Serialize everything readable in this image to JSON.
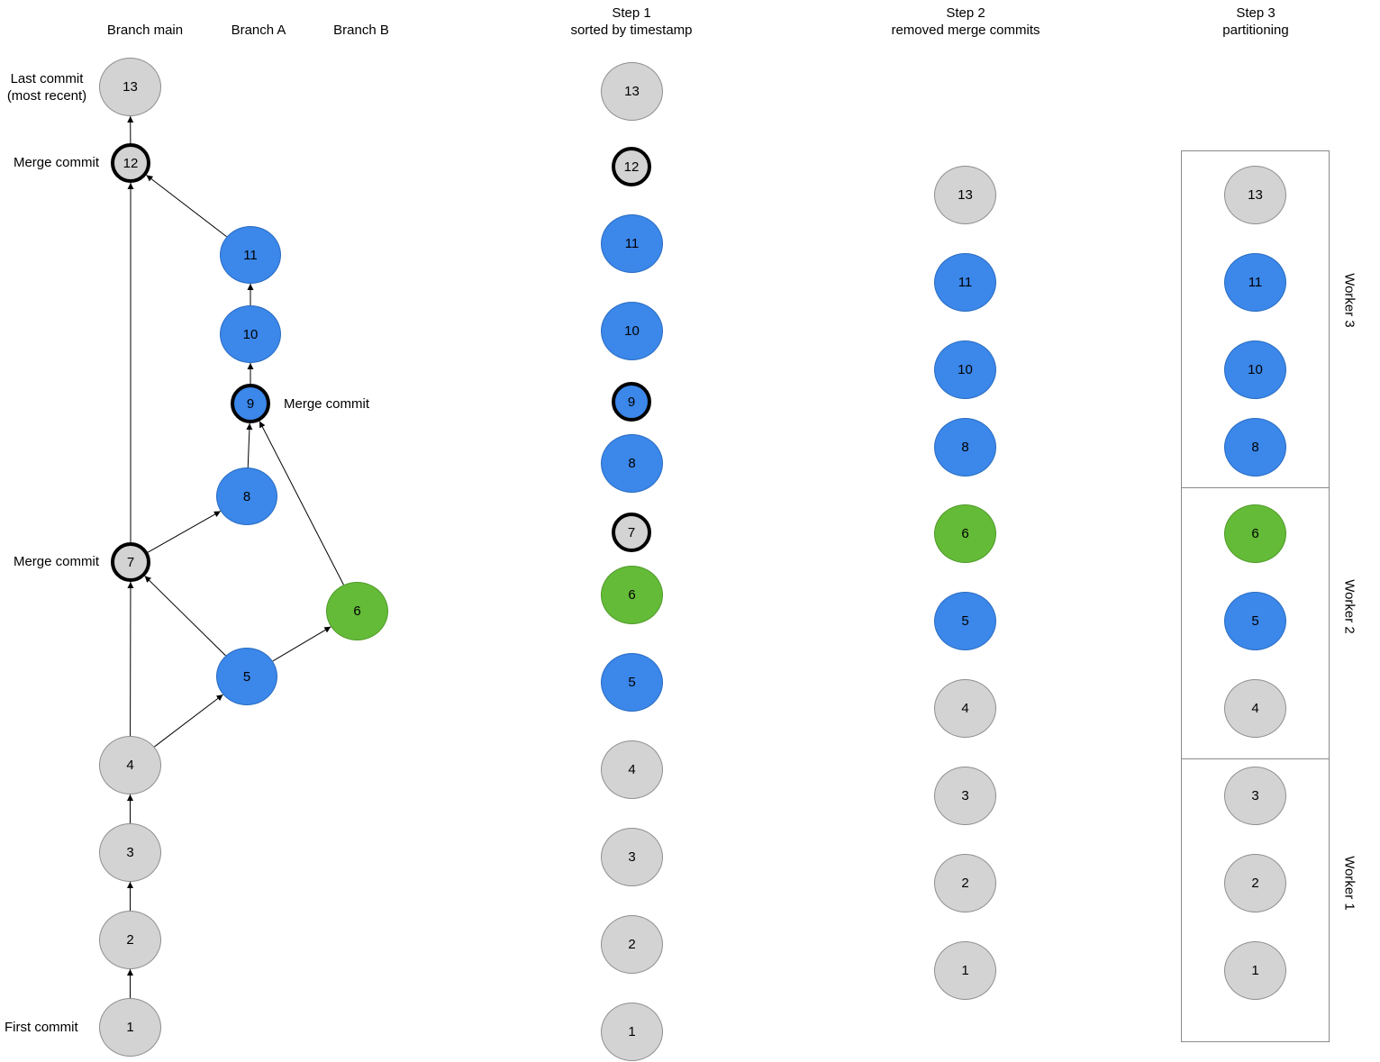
{
  "headers": {
    "branch_main": "Branch main",
    "branch_a": "Branch A",
    "branch_b": "Branch B",
    "step1_title": "Step 1",
    "step1_sub": "sorted by timestamp",
    "step2_title": "Step 2",
    "step2_sub": "removed merge commits",
    "step3_title": "Step 3",
    "step3_sub": "partitioning"
  },
  "annotations": {
    "last_commit_line1": "Last commit",
    "last_commit_line2": "(most recent)",
    "merge_commit_12": "Merge commit",
    "merge_commit_9": "Merge commit",
    "merge_commit_7": "Merge commit",
    "first_commit": "First commit"
  },
  "colors": {
    "main": "#d3d3d3",
    "branch_a": "#3b87ea",
    "branch_b": "#64bb37",
    "merge_border": "#000000"
  },
  "graph": {
    "commits": [
      {
        "id": "1",
        "branch": "main",
        "merge": false
      },
      {
        "id": "2",
        "branch": "main",
        "merge": false
      },
      {
        "id": "3",
        "branch": "main",
        "merge": false
      },
      {
        "id": "4",
        "branch": "main",
        "merge": false
      },
      {
        "id": "5",
        "branch": "A",
        "merge": false
      },
      {
        "id": "6",
        "branch": "B",
        "merge": false
      },
      {
        "id": "7",
        "branch": "main",
        "merge": true
      },
      {
        "id": "8",
        "branch": "A",
        "merge": false
      },
      {
        "id": "9",
        "branch": "A",
        "merge": true
      },
      {
        "id": "10",
        "branch": "A",
        "merge": false
      },
      {
        "id": "11",
        "branch": "A",
        "merge": false
      },
      {
        "id": "12",
        "branch": "main",
        "merge": true
      },
      {
        "id": "13",
        "branch": "main",
        "merge": false
      }
    ],
    "edges": [
      [
        "1",
        "2"
      ],
      [
        "2",
        "3"
      ],
      [
        "3",
        "4"
      ],
      [
        "4",
        "7"
      ],
      [
        "4",
        "5"
      ],
      [
        "5",
        "7"
      ],
      [
        "5",
        "6"
      ],
      [
        "7",
        "8"
      ],
      [
        "7",
        "12"
      ],
      [
        "8",
        "9"
      ],
      [
        "6",
        "9"
      ],
      [
        "9",
        "10"
      ],
      [
        "10",
        "11"
      ],
      [
        "11",
        "12"
      ],
      [
        "12",
        "13"
      ]
    ]
  },
  "step1": [
    {
      "id": "13",
      "branch": "main",
      "merge": false
    },
    {
      "id": "12",
      "branch": "main",
      "merge": true
    },
    {
      "id": "11",
      "branch": "A",
      "merge": false
    },
    {
      "id": "10",
      "branch": "A",
      "merge": false
    },
    {
      "id": "9",
      "branch": "A",
      "merge": true
    },
    {
      "id": "8",
      "branch": "A",
      "merge": false
    },
    {
      "id": "7",
      "branch": "main",
      "merge": true
    },
    {
      "id": "6",
      "branch": "B",
      "merge": false
    },
    {
      "id": "5",
      "branch": "A",
      "merge": false
    },
    {
      "id": "4",
      "branch": "main",
      "merge": false
    },
    {
      "id": "3",
      "branch": "main",
      "merge": false
    },
    {
      "id": "2",
      "branch": "main",
      "merge": false
    },
    {
      "id": "1",
      "branch": "main",
      "merge": false
    }
  ],
  "step2": [
    {
      "id": "13",
      "branch": "main"
    },
    {
      "id": "11",
      "branch": "A"
    },
    {
      "id": "10",
      "branch": "A"
    },
    {
      "id": "8",
      "branch": "A"
    },
    {
      "id": "6",
      "branch": "B"
    },
    {
      "id": "5",
      "branch": "A"
    },
    {
      "id": "4",
      "branch": "main"
    },
    {
      "id": "3",
      "branch": "main"
    },
    {
      "id": "2",
      "branch": "main"
    },
    {
      "id": "1",
      "branch": "main"
    }
  ],
  "step3": {
    "workers": [
      {
        "label": "Worker 3",
        "commits": [
          {
            "id": "13",
            "branch": "main"
          },
          {
            "id": "11",
            "branch": "A"
          },
          {
            "id": "10",
            "branch": "A"
          },
          {
            "id": "8",
            "branch": "A"
          }
        ]
      },
      {
        "label": "Worker 2",
        "commits": [
          {
            "id": "6",
            "branch": "B"
          },
          {
            "id": "5",
            "branch": "A"
          },
          {
            "id": "4",
            "branch": "main"
          }
        ]
      },
      {
        "label": "Worker 1",
        "commits": [
          {
            "id": "3",
            "branch": "main"
          },
          {
            "id": "2",
            "branch": "main"
          },
          {
            "id": "1",
            "branch": "main"
          }
        ]
      }
    ]
  }
}
